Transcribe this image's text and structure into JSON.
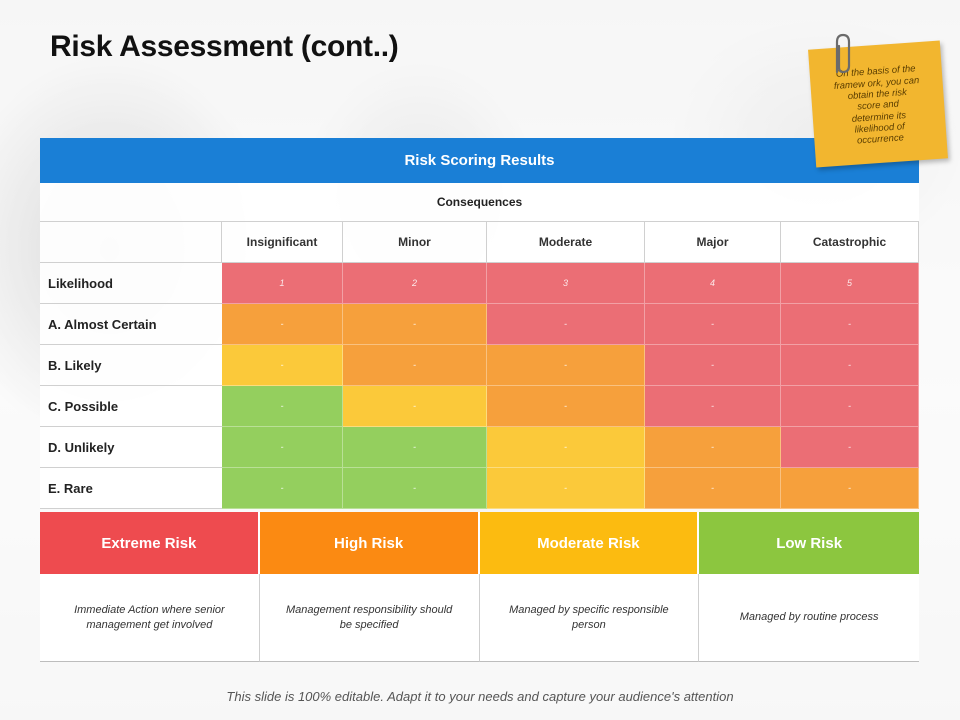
{
  "title": "Risk Assessment (cont..)",
  "sticky_note": "On the basis of the\nframew ork, you can\nobtain the risk\nscore and\ndetermine its\nlikelihood  of\noccurrence",
  "table": {
    "header": "Risk Scoring Results",
    "subheader": "Consequences",
    "columns": [
      "Insignificant",
      "Minor",
      "Moderate",
      "Major",
      "Catastrophic"
    ],
    "rows": [
      {
        "label": "Likelihood",
        "values": [
          "1",
          "2",
          "3",
          "4",
          "5"
        ],
        "colors": [
          "red",
          "red",
          "red",
          "red",
          "red"
        ]
      },
      {
        "label": "A. Almost Certain",
        "values": [
          "-",
          "-",
          "-",
          "-",
          "-"
        ],
        "colors": [
          "orange",
          "orange",
          "red",
          "red",
          "red"
        ]
      },
      {
        "label": "B. Likely",
        "values": [
          "-",
          "-",
          "-",
          "-",
          "-"
        ],
        "colors": [
          "yellow",
          "orange",
          "orange",
          "red",
          "red"
        ]
      },
      {
        "label": "C. Possible",
        "values": [
          "-",
          "-",
          "-",
          "-",
          "-"
        ],
        "colors": [
          "green",
          "yellow",
          "orange",
          "red",
          "red"
        ]
      },
      {
        "label": "D. Unlikely",
        "values": [
          "-",
          "-",
          "-",
          "-",
          "-"
        ],
        "colors": [
          "green",
          "green",
          "yellow",
          "orange",
          "red"
        ]
      },
      {
        "label": "E. Rare",
        "values": [
          "-",
          "-",
          "-",
          "-",
          "-"
        ],
        "colors": [
          "green",
          "green",
          "yellow",
          "orange",
          "orange"
        ]
      }
    ]
  },
  "legend": [
    {
      "label": "Extreme Risk",
      "desc": "Immediate Action where senior management get involved",
      "color": "#ee4b4f"
    },
    {
      "label": "High Risk",
      "desc": "Management responsibility should be specified",
      "color": "#fb8a12"
    },
    {
      "label": "Moderate Risk",
      "desc": "Managed by specific responsible person",
      "color": "#fcbb10"
    },
    {
      "label": "Low Risk",
      "desc": "Managed by routine process",
      "color": "#8cc63f"
    }
  ],
  "footer": "This slide is 100% editable. Adapt it to your needs and capture your audience's attention",
  "colors": {
    "header_blue": "#1a7fd6",
    "red": "#eb6e75",
    "orange": "#f6a03c",
    "yellow": "#fbc93a",
    "green": "#94cf5e"
  }
}
